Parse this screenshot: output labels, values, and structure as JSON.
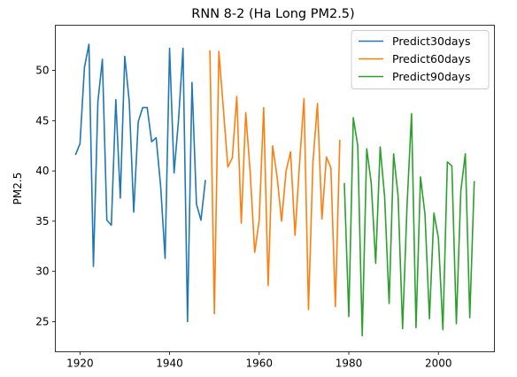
{
  "chart_data": {
    "type": "line",
    "title": "RNN 8-2 (Ha Long PM2.5)",
    "xlabel": "",
    "ylabel": "PM2.5",
    "xlim": [
      1914.5,
      2012.5
    ],
    "ylim": [
      22.0,
      54.5
    ],
    "xticks": [
      1920,
      1940,
      1960,
      1980,
      2000
    ],
    "yticks": [
      25,
      30,
      35,
      40,
      45,
      50
    ],
    "grid": false,
    "legend_position": "top-right",
    "series": [
      {
        "name": "Predict30days",
        "color": "#1f77b4",
        "x": [
          1919,
          1920,
          1921,
          1922,
          1923,
          1924,
          1925,
          1926,
          1927,
          1928,
          1929,
          1930,
          1931,
          1932,
          1933,
          1934,
          1935,
          1936,
          1937,
          1938,
          1939,
          1940,
          1941,
          1942,
          1943,
          1944,
          1945,
          1946,
          1947,
          1948
        ],
        "y": [
          41.6,
          42.7,
          50.3,
          52.6,
          30.5,
          46.9,
          51.1,
          35.1,
          34.6,
          47.1,
          37.3,
          51.4,
          46.9,
          35.9,
          44.9,
          46.3,
          46.3,
          42.9,
          43.3,
          38.5,
          31.3,
          52.2,
          39.8,
          45.1,
          52.2,
          25.0,
          48.8,
          36.7,
          35.1,
          39.1
        ]
      },
      {
        "name": "Predict60days",
        "color": "#ff7f0e",
        "x": [
          1949,
          1950,
          1951,
          1952,
          1953,
          1954,
          1955,
          1956,
          1957,
          1958,
          1959,
          1960,
          1961,
          1962,
          1963,
          1964,
          1965,
          1966,
          1967,
          1968,
          1969,
          1970,
          1971,
          1972,
          1973,
          1974,
          1975,
          1976,
          1977,
          1978
        ],
        "y": [
          52.0,
          25.8,
          51.9,
          46.2,
          40.4,
          41.3,
          47.4,
          34.8,
          45.8,
          39.8,
          31.9,
          35.1,
          46.3,
          28.6,
          42.5,
          39.4,
          35.0,
          40.0,
          41.9,
          33.6,
          40.7,
          47.2,
          26.2,
          40.9,
          46.7,
          35.2,
          41.4,
          40.3,
          26.5,
          43.1
        ]
      },
      {
        "name": "Predict90days",
        "color": "#2ca02c",
        "x": [
          1979,
          1980,
          1981,
          1982,
          1983,
          1984,
          1985,
          1986,
          1987,
          1988,
          1989,
          1990,
          1991,
          1992,
          1993,
          1994,
          1995,
          1996,
          1997,
          1998,
          1999,
          2000,
          2001,
          2002,
          2003,
          2004,
          2005,
          2006,
          2007,
          2008
        ],
        "y": [
          38.8,
          25.5,
          45.3,
          42.5,
          23.6,
          42.2,
          38.8,
          30.8,
          42.4,
          37.4,
          26.8,
          41.7,
          37.5,
          24.3,
          36.6,
          45.7,
          24.4,
          39.4,
          35.7,
          25.3,
          35.8,
          33.3,
          24.2,
          40.9,
          40.5,
          24.8,
          38.0,
          41.7,
          25.4,
          39.0
        ]
      }
    ]
  }
}
